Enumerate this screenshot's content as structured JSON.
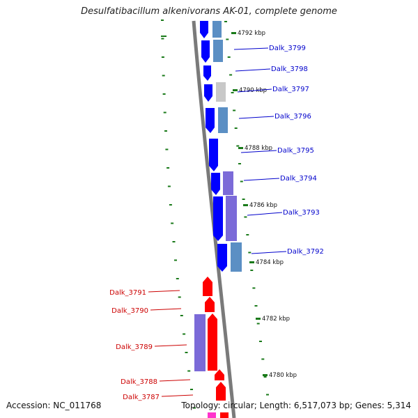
{
  "title": "Desulfatibacillum alkenivorans AK-01, complete genome",
  "footer": {
    "accession": "Accession: NC_011768",
    "topology": "Topology: circular; Length: 6,517,073 bp; Genes: 5,314"
  },
  "colors": {
    "forward_cds": "#0000ff",
    "reverse_cds": "#ff0000",
    "forward_label": "#0000cc",
    "reverse_label": "#cc0000",
    "ruler_tick": "#1a7a1a"
  },
  "kbp_labels": [
    "4792 kbp",
    "4790 kbp",
    "4788 kbp",
    "4786 kbp",
    "4784 kbp",
    "4782 kbp",
    "4780 kbp"
  ],
  "forward_genes": [
    "Dalk_3799",
    "Dalk_3798",
    "Dalk_3797",
    "Dalk_3796",
    "Dalk_3795",
    "Dalk_3794",
    "Dalk_3793",
    "Dalk_3792"
  ],
  "reverse_genes": [
    "Dalk_3791",
    "Dalk_3790",
    "Dalk_3789",
    "Dalk_3788",
    "Dalk_3787"
  ]
}
